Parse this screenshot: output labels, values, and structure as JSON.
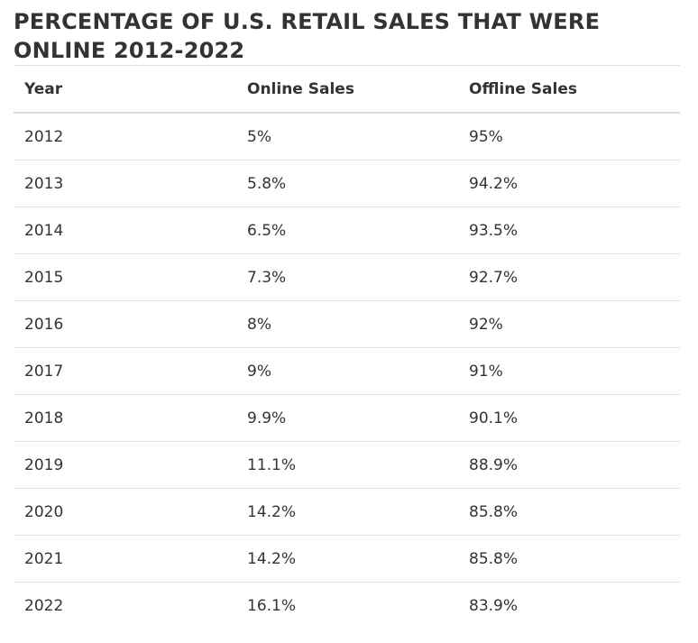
{
  "title": "PERCENTAGE OF U.S. RETAIL SALES THAT WERE ONLINE 2012-2022",
  "table": {
    "headers": [
      "Year",
      "Online Sales",
      "Offline Sales"
    ],
    "rows": [
      [
        "2012",
        "5%",
        "95%"
      ],
      [
        "2013",
        "5.8%",
        "94.2%"
      ],
      [
        "2014",
        "6.5%",
        "93.5%"
      ],
      [
        "2015",
        "7.3%",
        "92.7%"
      ],
      [
        "2016",
        "8%",
        "92%"
      ],
      [
        "2017",
        "9%",
        "91%"
      ],
      [
        "2018",
        "9.9%",
        "90.1%"
      ],
      [
        "2019",
        "11.1%",
        "88.9%"
      ],
      [
        "2020",
        "14.2%",
        "85.8%"
      ],
      [
        "2021",
        "14.2%",
        "85.8%"
      ],
      [
        "2022",
        "16.1%",
        "83.9%"
      ]
    ]
  }
}
